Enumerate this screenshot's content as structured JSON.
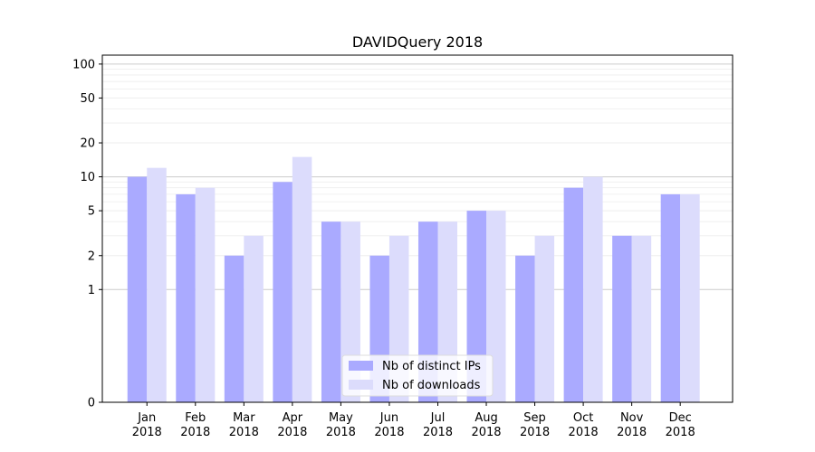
{
  "chart_data": {
    "type": "bar",
    "title": "DAVIDQuery 2018",
    "xlabel": "",
    "ylabel": "",
    "scale": "symlog",
    "categories": [
      "Jan\n2018",
      "Feb\n2018",
      "Mar\n2018",
      "Apr\n2018",
      "May\n2018",
      "Jun\n2018",
      "Jul\n2018",
      "Aug\n2018",
      "Sep\n2018",
      "Oct\n2018",
      "Nov\n2018",
      "Dec\n2018"
    ],
    "series": [
      {
        "name": "Nb of distinct IPs",
        "values": [
          10,
          7,
          2,
          9,
          4,
          2,
          4,
          5,
          2,
          8,
          3,
          7
        ]
      },
      {
        "name": "Nb of downloads",
        "values": [
          12,
          8,
          3,
          15,
          4,
          3,
          4,
          5,
          3,
          10,
          3,
          7
        ]
      }
    ],
    "yticks": [
      0,
      1,
      2,
      5,
      10,
      20,
      50,
      100
    ],
    "ylim": [
      0,
      120
    ],
    "grid": true,
    "legend_position": "bottom-center",
    "colors": {
      "series_0": "#aaaaff",
      "series_1": "#dcdcfc",
      "grid_major": "#cccccc",
      "grid_minor": "#eeeeee"
    }
  }
}
